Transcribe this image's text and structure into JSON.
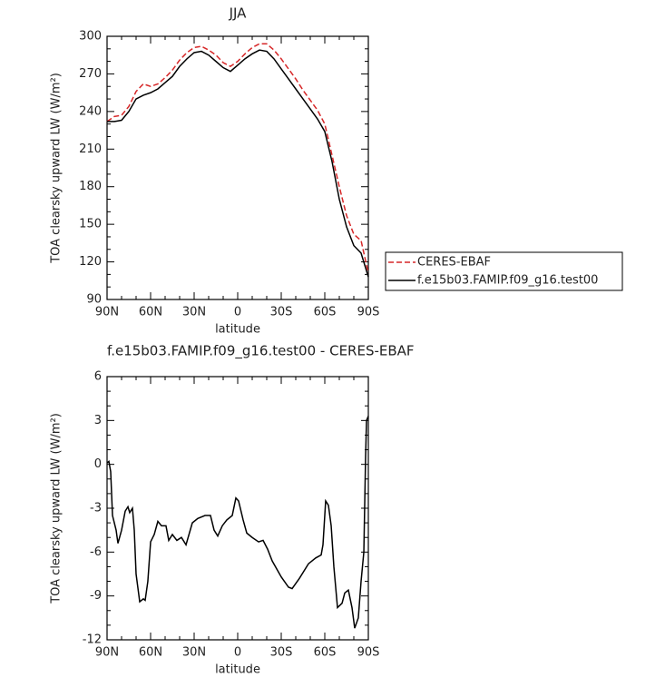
{
  "chart_data": [
    {
      "type": "line",
      "title": "JJA",
      "xlabel": "latitude",
      "ylabel": "TOA clearsky upward LW (W/m²)",
      "x": [
        90,
        85,
        80,
        75,
        70,
        65,
        60,
        55,
        50,
        45,
        40,
        35,
        30,
        25,
        20,
        15,
        10,
        5,
        0,
        -5,
        -10,
        -15,
        -20,
        -25,
        -30,
        -35,
        -40,
        -45,
        -50,
        -55,
        -60,
        -65,
        -70,
        -75,
        -80,
        -85,
        -90
      ],
      "series": [
        {
          "name": "CERES-EBAF",
          "color": "#d62728",
          "dash": true,
          "values": [
            232,
            236,
            237,
            244,
            256,
            262,
            260,
            262,
            267,
            273,
            281,
            287,
            291,
            292,
            289,
            285,
            279,
            276,
            280,
            286,
            291,
            294,
            294,
            289,
            282,
            274,
            266,
            257,
            249,
            241,
            230,
            205,
            180,
            157,
            142,
            137,
            111
          ]
        },
        {
          "name": "f.e15b03.FAMIP.f09_g16.test00",
          "color": "#000000",
          "dash": false,
          "values": [
            232,
            232,
            233,
            240,
            250,
            253,
            255,
            258,
            263,
            268,
            276,
            282,
            287,
            288,
            285,
            280,
            275,
            272,
            277,
            282,
            286,
            289,
            288,
            282,
            274,
            266,
            258,
            250,
            242,
            234,
            224,
            200,
            170,
            148,
            133,
            127,
            108
          ]
        }
      ],
      "xlim": [
        90,
        -90
      ],
      "xticks": [
        {
          "value": 90,
          "label": "90N"
        },
        {
          "value": 60,
          "label": "60N"
        },
        {
          "value": 30,
          "label": "30N"
        },
        0,
        {
          "value": -30,
          "label": "30S"
        },
        {
          "value": -60,
          "label": "60S"
        },
        {
          "value": -90,
          "label": "90S"
        }
      ],
      "ylim": [
        90,
        300
      ],
      "yticks": [
        90,
        120,
        150,
        180,
        210,
        240,
        270,
        300
      ],
      "legend": "right"
    },
    {
      "type": "line",
      "title": "f.e15b03.FAMIP.f09_g16.test00 - CERES-EBAF",
      "xlabel": "latitude",
      "ylabel": "TOA clearsky upward LW (W/m²)",
      "x": [
        90,
        88.75,
        87.5,
        86.25,
        83.75,
        82.5,
        80,
        77.5,
        75.6,
        74.4,
        72.5,
        71.25,
        70,
        67.5,
        65,
        63.75,
        61.9,
        60,
        57.5,
        55,
        52.5,
        49.4,
        47.5,
        45,
        41.9,
        38.75,
        35.6,
        31.25,
        27.5,
        22.5,
        18.75,
        16.25,
        13.75,
        10.6,
        7.5,
        3.75,
        1.25,
        -0.6,
        -3.75,
        -6.25,
        -10,
        -14.4,
        -17.5,
        -20.6,
        -23.75,
        -30,
        -35,
        -37.5,
        -42.5,
        -48.75,
        -53.75,
        -57.5,
        -58.75,
        -60.6,
        -62.5,
        -64.4,
        -66.25,
        -68.75,
        -71.9,
        -73.75,
        -76.25,
        -78.75,
        -80.6,
        -83.1,
        -85,
        -86.9,
        -88.1,
        -88.75,
        -90
      ],
      "series": [
        {
          "name": "f.e15b03.FAMIP.f09_g16.test00 - CERES-EBAF",
          "color": "#000000",
          "dash": false,
          "values": [
            0.1,
            0.2,
            -0.5,
            -3.5,
            -4.5,
            -5.4,
            -4.5,
            -3.2,
            -2.9,
            -3.3,
            -3.0,
            -4.5,
            -7.5,
            -9.4,
            -9.2,
            -9.3,
            -8.0,
            -5.3,
            -4.8,
            -3.9,
            -4.2,
            -4.2,
            -5.2,
            -4.8,
            -5.2,
            -5.0,
            -5.5,
            -4.0,
            -3.7,
            -3.5,
            -3.5,
            -4.5,
            -4.9,
            -4.2,
            -3.8,
            -3.5,
            -2.3,
            -2.5,
            -3.8,
            -4.7,
            -5.0,
            -5.3,
            -5.2,
            -5.8,
            -6.6,
            -7.7,
            -8.4,
            -8.5,
            -7.8,
            -6.8,
            -6.4,
            -6.2,
            -5.5,
            -2.5,
            -2.8,
            -4.2,
            -7.0,
            -9.8,
            -9.5,
            -8.8,
            -8.6,
            -9.8,
            -11.2,
            -10.5,
            -8.0,
            -6.0,
            0.5,
            3.0,
            3.3
          ]
        }
      ],
      "xlim": [
        90,
        -90
      ],
      "xticks": [
        {
          "value": 90,
          "label": "90N"
        },
        {
          "value": 60,
          "label": "60N"
        },
        {
          "value": 30,
          "label": "30N"
        },
        0,
        {
          "value": -30,
          "label": "30S"
        },
        {
          "value": -60,
          "label": "60S"
        },
        {
          "value": -90,
          "label": "90S"
        }
      ],
      "ylim": [
        -12,
        6
      ],
      "yticks": [
        -12,
        -9,
        -6,
        -3,
        0,
        3,
        6
      ]
    }
  ]
}
